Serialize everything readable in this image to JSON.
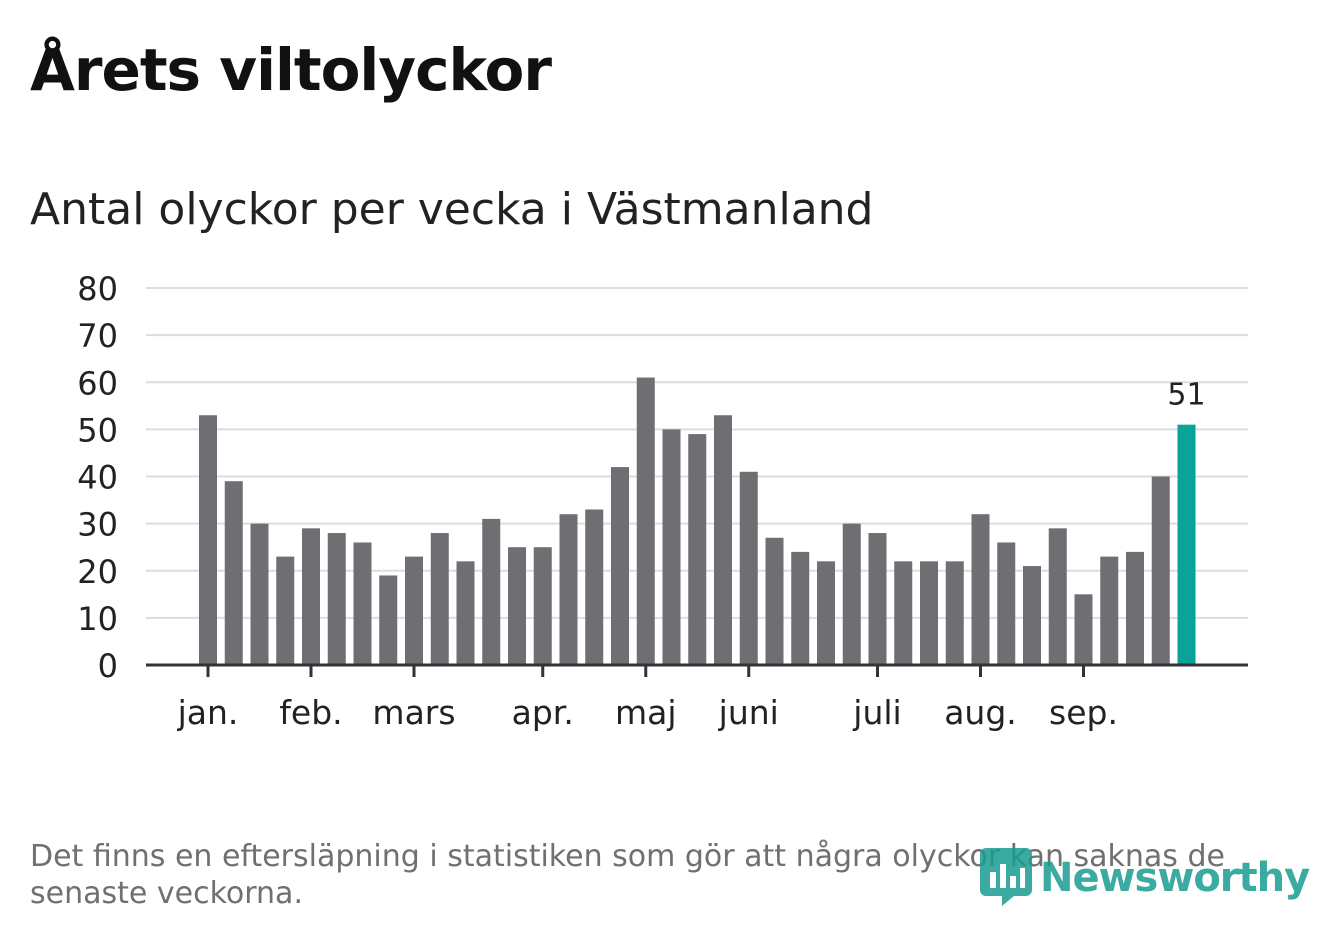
{
  "title": "Årets viltolyckor",
  "subtitle": "Antal olyckor per vecka i Västmanland",
  "note": "Det finns en eftersläpning i statistiken som gör att några olyckor kan saknas de senaste veckorna.",
  "logo": {
    "text": "Newsworthy",
    "icon": "newsworthy-logo-icon"
  },
  "colors": {
    "bar": "#6f6e73",
    "highlight": "#0aa398",
    "grid": "#dddddd",
    "axis": "#333333",
    "text": "#222222",
    "note": "#707070"
  },
  "chart_data": {
    "type": "bar",
    "title": "Antal olyckor per vecka i Västmanland",
    "xlabel": "",
    "ylabel": "",
    "ylim": [
      0,
      80
    ],
    "yticks": [
      0,
      10,
      20,
      30,
      40,
      50,
      60,
      70,
      80
    ],
    "grid": true,
    "values": [
      53,
      39,
      30,
      23,
      29,
      28,
      26,
      19,
      23,
      28,
      22,
      31,
      25,
      25,
      32,
      33,
      42,
      61,
      50,
      49,
      53,
      41,
      27,
      24,
      22,
      30,
      28,
      22,
      22,
      22,
      32,
      26,
      21,
      29,
      15,
      23,
      24,
      40,
      51
    ],
    "highlight_index": 38,
    "highlight_label": "51",
    "month_labels": [
      {
        "label": "jan.",
        "bar_index": 0
      },
      {
        "label": "feb.",
        "bar_index": 4
      },
      {
        "label": "mars",
        "bar_index": 8
      },
      {
        "label": "apr.",
        "bar_index": 13
      },
      {
        "label": "maj",
        "bar_index": 17
      },
      {
        "label": "juni",
        "bar_index": 21
      },
      {
        "label": "juli",
        "bar_index": 26
      },
      {
        "label": "aug.",
        "bar_index": 30
      },
      {
        "label": "sep.",
        "bar_index": 34
      }
    ]
  }
}
